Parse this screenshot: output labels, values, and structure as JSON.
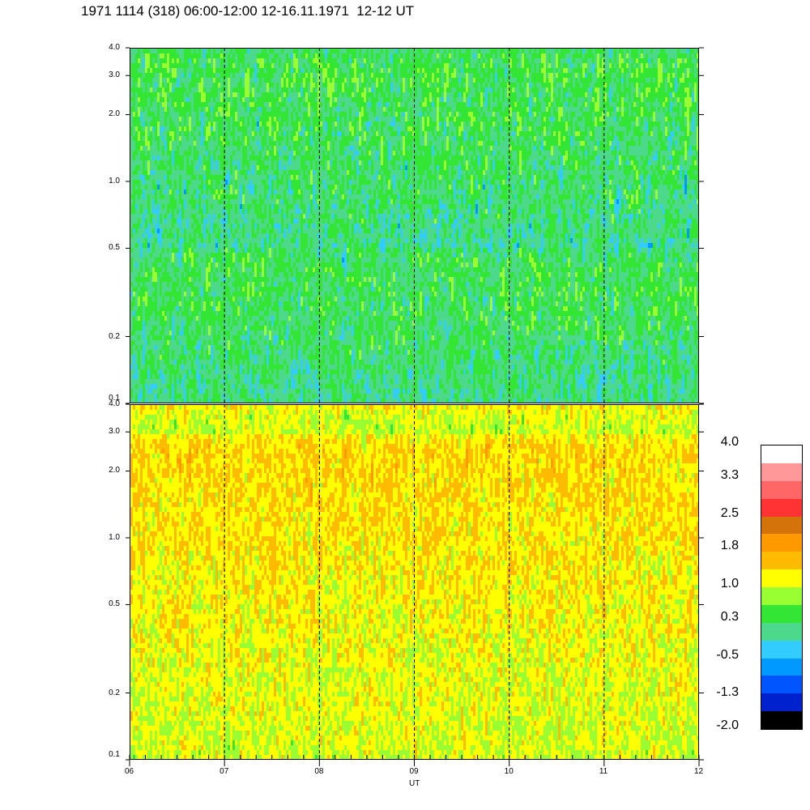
{
  "title": "1971 1114 (318) 06:00-12:00 12-16.11.1971  12-12 UT",
  "chart_data": [
    {
      "type": "heatmap",
      "panel": "upper",
      "title": "",
      "xlabel": "",
      "ylabel": "",
      "y_scale": "log",
      "ylim": [
        0.1,
        4.0
      ],
      "yticks": [
        "4.0",
        "3.0",
        "2.0",
        "1.0",
        "0.5",
        "0.2",
        "0.1"
      ],
      "ytick_values": [
        4.0,
        3.0,
        2.0,
        1.0,
        0.5,
        0.2,
        0.1
      ],
      "xlim": [
        6,
        12
      ],
      "vlines": [
        7,
        8,
        9,
        10,
        11
      ],
      "dominant_level": "0.3 to 1.0"
    },
    {
      "type": "heatmap",
      "panel": "lower",
      "title": "",
      "xlabel": "UT",
      "ylabel": "",
      "y_scale": "log",
      "ylim": [
        0.1,
        4.0
      ],
      "yticks": [
        "4.0",
        "3.0",
        "2.0",
        "1.0",
        "0.5",
        "0.2",
        "0.1"
      ],
      "ytick_values": [
        4.0,
        3.0,
        2.0,
        1.0,
        0.5,
        0.2,
        0.1
      ],
      "xlim": [
        6,
        12
      ],
      "xticks": [
        "06",
        "07",
        "08",
        "09",
        "10",
        "11",
        "12"
      ],
      "xtick_values": [
        6,
        7,
        8,
        9,
        10,
        11,
        12
      ],
      "vlines": [
        7,
        8,
        9,
        10,
        11
      ],
      "dominant_level": "1.0 to 1.8"
    }
  ],
  "colorbar": {
    "labels": [
      "4.0",
      "3.3",
      "2.5",
      "1.8",
      "1.0",
      "0.3",
      "-0.5",
      "-1.3",
      "-2.0"
    ],
    "label_values": [
      4.0,
      3.3,
      2.5,
      1.8,
      1.0,
      0.3,
      -0.5,
      -1.3,
      -2.0
    ],
    "colors": [
      "#ffffff",
      "#ff9999",
      "#ff6666",
      "#ff3333",
      "#d4730a",
      "#ff9900",
      "#ffbb00",
      "#ffff00",
      "#99ff33",
      "#33e633",
      "#4dd98c",
      "#33ccff",
      "#0099ff",
      "#0055ff",
      "#0022cc",
      "#000000"
    ]
  }
}
